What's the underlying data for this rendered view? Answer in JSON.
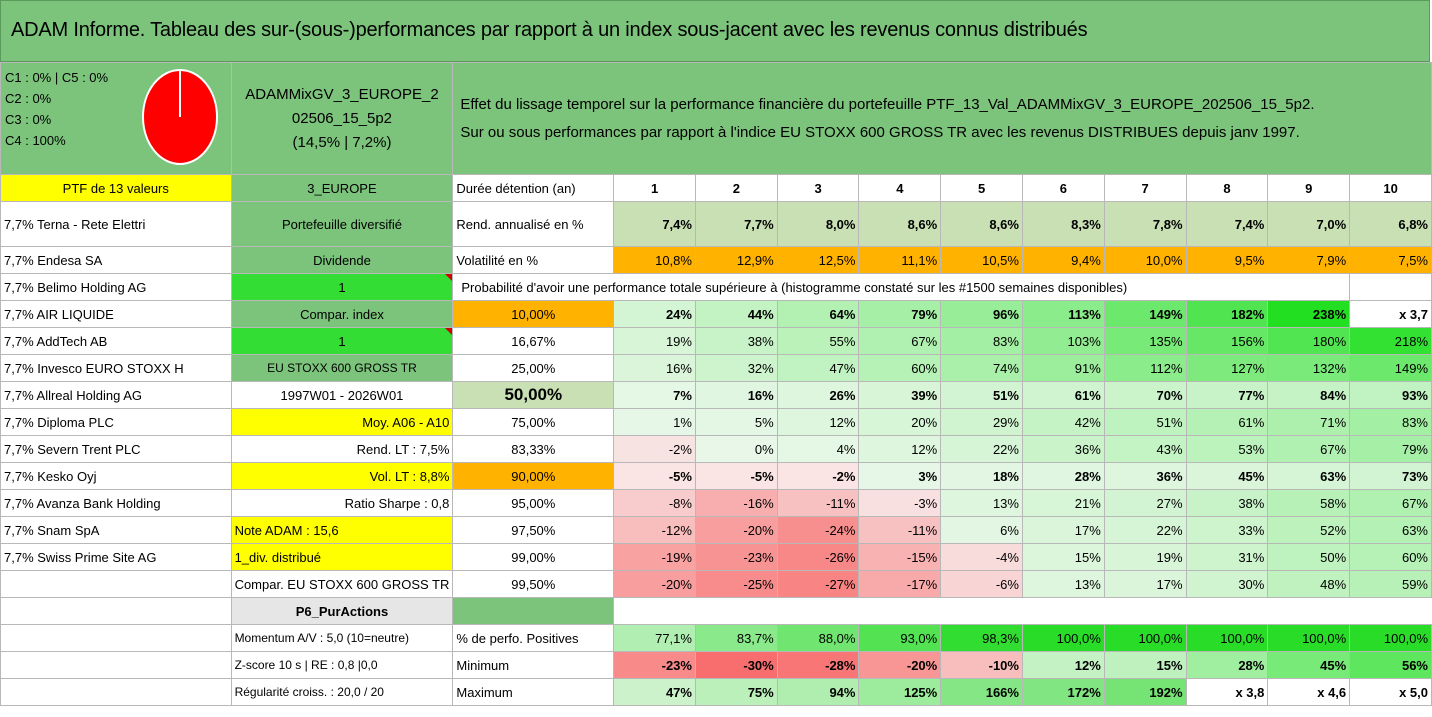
{
  "title": "ADAM Informe. Tableau des sur-(sous-)performances par rapport à un index sous-jacent avec les revenus connus distribués",
  "classes": {
    "c1c5": "C1 : 0% | C5 : 0%",
    "c2": "C2 : 0%",
    "c3": "C3 : 0%",
    "c4": "C4 : 100%"
  },
  "pie": {
    "color": "#ff0000"
  },
  "portfolio_name": {
    "line1": "ADAMMixGV_3_EUROPE_2",
    "line2": "02506_15_5p2",
    "line3": "(14,5% | 7,2%)"
  },
  "effet": {
    "line1": "Effet du lissage temporel sur la performance financière du portefeuille PTF_13_Val_ADAMMixGV_3_EUROPE_202506_15_5p2.",
    "line2": "Sur ou sous performances par rapport à l'indice EU STOXX 600 GROSS TR avec les revenus DISTRIBUES depuis janv 1997."
  },
  "ptf_label": "PTF de 13 valeurs",
  "zone": "3_EUROPE",
  "duree_label": "Durée détention (an)",
  "years": [
    "1",
    "2",
    "3",
    "4",
    "5",
    "6",
    "7",
    "8",
    "9",
    "10"
  ],
  "holdings": [
    "7,7% Terna - Rete Elettri",
    "7,7% Endesa SA",
    "7,7% Belimo Holding AG",
    "7,7% AIR LIQUIDE",
    "7,7% AddTech AB",
    "7,7% Invesco EURO STOXX H",
    "7,7% Allreal Holding AG",
    "7,7% Diploma PLC",
    "7,7% Severn Trent PLC",
    "7,7% Kesko Oyj",
    "7,7% Avanza Bank Holding",
    "7,7% Snam SpA",
    "7,7% Swiss Prime Site AG"
  ],
  "info": {
    "portefeuille": "Portefeuille diversifié",
    "dividende": "Dividende",
    "one_a": "1",
    "compar_index": "Compar. index",
    "one_b": "1",
    "index_name": "EU STOXX 600 GROSS TR",
    "period": "1997W01 - 2026W01",
    "moy": "Moy. A06 - A10",
    "rend_lt": "Rend. LT : 7,5%",
    "vol_lt": "Vol. LT : 8,8%",
    "sharpe": "Ratio Sharpe : 0,8",
    "note": "Note ADAM : 15,6",
    "div": "1_div. distribué",
    "compar_full": "Compar. EU STOXX 600 GROSS TR",
    "p6": "P6_PurActions",
    "momentum": "Momentum A/V : 5,0 (10=neutre)",
    "zscore": "Z-score 10 s | RE : 0,8 |0,0",
    "regularite": "Régularité croiss. : 20,0 / 20"
  },
  "rend": {
    "label": "Rend. annualisé en %",
    "values": [
      "7,4%",
      "7,7%",
      "8,0%",
      "8,6%",
      "8,6%",
      "8,3%",
      "7,8%",
      "7,4%",
      "7,0%",
      "6,8%"
    ]
  },
  "vol": {
    "label": "Volatilité en %",
    "values": [
      "10,8%",
      "12,9%",
      "12,5%",
      "11,1%",
      "10,5%",
      "9,4%",
      "10,0%",
      "9,5%",
      "7,9%",
      "7,5%"
    ]
  },
  "proba_label": "Probabilité d'avoir une performance totale supérieure à (histogramme constaté sur les #1500 semaines disponibles)",
  "proba_rows": [
    {
      "p": "10,00%",
      "values": [
        "24%",
        "44%",
        "64%",
        "79%",
        "96%",
        "113%",
        "149%",
        "182%",
        "238%",
        "x 3,7"
      ]
    },
    {
      "p": "16,67%",
      "values": [
        "19%",
        "38%",
        "55%",
        "67%",
        "83%",
        "103%",
        "135%",
        "156%",
        "180%",
        "218%"
      ]
    },
    {
      "p": "25,00%",
      "values": [
        "16%",
        "32%",
        "47%",
        "60%",
        "74%",
        "91%",
        "112%",
        "127%",
        "132%",
        "149%"
      ]
    },
    {
      "p": "50,00%",
      "values": [
        "7%",
        "16%",
        "26%",
        "39%",
        "51%",
        "61%",
        "70%",
        "77%",
        "84%",
        "93%"
      ]
    },
    {
      "p": "75,00%",
      "values": [
        "1%",
        "5%",
        "12%",
        "20%",
        "29%",
        "42%",
        "51%",
        "61%",
        "71%",
        "83%"
      ]
    },
    {
      "p": "83,33%",
      "values": [
        "-2%",
        "0%",
        "4%",
        "12%",
        "22%",
        "36%",
        "43%",
        "53%",
        "67%",
        "79%"
      ]
    },
    {
      "p": "90,00%",
      "values": [
        "-5%",
        "-5%",
        "-2%",
        "3%",
        "18%",
        "28%",
        "36%",
        "45%",
        "63%",
        "73%"
      ]
    },
    {
      "p": "95,00%",
      "values": [
        "-8%",
        "-16%",
        "-11%",
        "-3%",
        "13%",
        "21%",
        "27%",
        "38%",
        "58%",
        "67%"
      ]
    },
    {
      "p": "97,50%",
      "values": [
        "-12%",
        "-20%",
        "-24%",
        "-11%",
        "6%",
        "17%",
        "22%",
        "33%",
        "52%",
        "63%"
      ]
    },
    {
      "p": "99,00%",
      "values": [
        "-19%",
        "-23%",
        "-26%",
        "-15%",
        "-4%",
        "15%",
        "19%",
        "31%",
        "50%",
        "60%"
      ]
    },
    {
      "p": "99,50%",
      "values": [
        "-20%",
        "-25%",
        "-27%",
        "-17%",
        "-6%",
        "13%",
        "17%",
        "30%",
        "48%",
        "59%"
      ]
    }
  ],
  "positives": {
    "label": "% de perfo. Positives",
    "values": [
      "77,1%",
      "83,7%",
      "88,0%",
      "93,0%",
      "98,3%",
      "100,0%",
      "100,0%",
      "100,0%",
      "100,0%",
      "100,0%"
    ]
  },
  "minimum": {
    "label": "Minimum",
    "values": [
      "-23%",
      "-30%",
      "-28%",
      "-20%",
      "-10%",
      "12%",
      "15%",
      "28%",
      "45%",
      "56%"
    ]
  },
  "maximum": {
    "label": "Maximum",
    "values": [
      "47%",
      "75%",
      "94%",
      "125%",
      "166%",
      "172%",
      "192%",
      "x 3,8",
      "x 4,6",
      "x 5,0"
    ]
  }
}
